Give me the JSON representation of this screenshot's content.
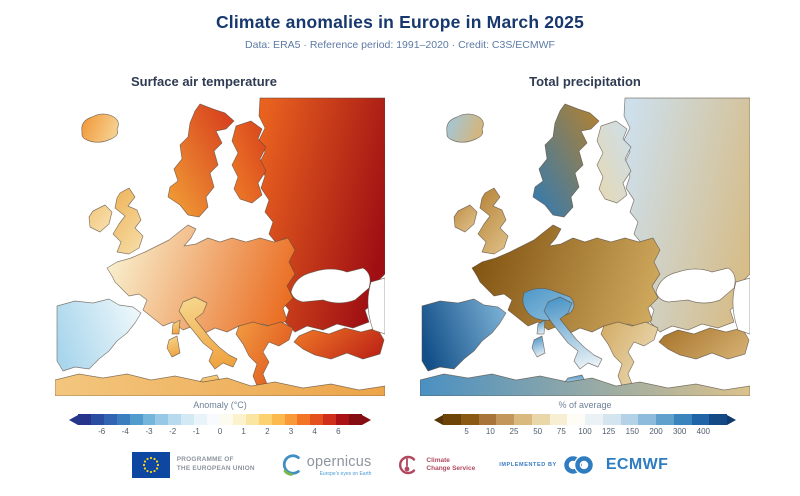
{
  "header": {
    "title": "Climate anomalies in Europe in March 2025",
    "subtitle": "Data: ERA5 · Reference period: 1991–2020 · Credit: C3S/ECMWF"
  },
  "panels": {
    "temperature": {
      "title": "Surface air temperature",
      "colorbar": {
        "label": "Anomaly (°C)",
        "ticks": [
          "-6",
          "-4",
          "-3",
          "-2",
          "-1",
          "0",
          "1",
          "2",
          "3",
          "4",
          "6"
        ],
        "segments": [
          "#27348b",
          "#2b4da1",
          "#3164b3",
          "#3b7ec0",
          "#529ccd",
          "#74b5db",
          "#97c9e6",
          "#b7daee",
          "#d3e9f4",
          "#e9f4fa",
          "#f8fbfd",
          "#fdfaee",
          "#fcf2cd",
          "#fbe5a2",
          "#fbd26f",
          "#fbb94e",
          "#f99a38",
          "#f37426",
          "#e5501f",
          "#cf2f1c",
          "#ab1216",
          "#850d11"
        ],
        "arrow_left": "#27348b",
        "arrow_right": "#850d11"
      },
      "map_fills": {
        "russia": {
          "from": "#e8611f",
          "to": "#9e0e13"
        },
        "central": {
          "from": "#f8efcd",
          "to": "#ea6c20"
        },
        "scandinavia": {
          "from": "#f2a238",
          "to": "#d5381b"
        },
        "finland": {
          "from": "#ee7d28",
          "to": "#d8431c"
        },
        "iceland": {
          "from": "#f09433",
          "to": "#f6cf8d"
        },
        "uk": {
          "from": "#eeb55e",
          "to": "#f6dca4"
        },
        "ireland": {
          "from": "#f3c67d",
          "to": "#f8e3b2"
        },
        "iberia": {
          "from": "#a9d6ec",
          "to": "#edf7fb"
        },
        "italy": {
          "from": "#f6d58a",
          "to": "#efa23f"
        },
        "balkans": {
          "from": "#f29c42",
          "to": "#e0571d"
        },
        "turkey": {
          "from": "#ee7526",
          "to": "#bf2817"
        },
        "africa": {
          "from": "#f3c67e",
          "to": "#eca449"
        }
      }
    },
    "precipitation": {
      "title": "Total precipitation",
      "colorbar": {
        "label": "% of average",
        "ticks": [
          "5",
          "10",
          "25",
          "50",
          "75",
          "100",
          "125",
          "150",
          "200",
          "300",
          "400"
        ],
        "segments": [
          "#6d4408",
          "#8a5a14",
          "#a8743a",
          "#c3975c",
          "#d9b97e",
          "#ead7a9",
          "#f7eed4",
          "#fdfcf5",
          "#eaf2f6",
          "#d4e5f0",
          "#b4d2e7",
          "#8cbbdb",
          "#5fa0cd",
          "#3984bd",
          "#1f64a7",
          "#134a86"
        ],
        "arrow_left": "#57350a",
        "arrow_right": "#0e3a6d"
      },
      "map_fills": {
        "russia": {
          "from": "#cddfeb",
          "to": "#d6bd8a"
        },
        "central": {
          "from": "#825412",
          "to": "#cfa95e"
        },
        "alps": {
          "from": "#4f97c8",
          "to": "#8fc0dd"
        },
        "scandinavia": {
          "from": "#2f7ab5",
          "to": "#b5812e"
        },
        "finland": {
          "from": "#e6d8b2",
          "to": "#ccdfeb"
        },
        "iceland": {
          "from": "#9ec9e2",
          "to": "#d3b57e"
        },
        "uk": {
          "from": "#b8863d",
          "to": "#dcbd82"
        },
        "ireland": {
          "from": "#c09048",
          "to": "#e0c28e"
        },
        "iberia": {
          "from": "#134f88",
          "to": "#79afd4"
        },
        "italy": {
          "from": "#4f97c8",
          "to": "#e8f1f6"
        },
        "balkans": {
          "from": "#d3ab64",
          "to": "#ead9b2"
        },
        "turkey": {
          "from": "#a8762c",
          "to": "#d2ac6e"
        },
        "africa": {
          "from": "#4a90c2",
          "to": "#dbc28c"
        }
      }
    }
  },
  "footer": {
    "eu_program": {
      "line1": "PROGRAMME OF",
      "line2": "THE EUROPEAN UNION"
    },
    "copernicus": {
      "wordmark": "opernicus",
      "tagline": "Europe's eyes on Earth"
    },
    "c3s": {
      "line1": "Climate",
      "line2": "Change Service"
    },
    "implemented_by": "IMPLEMENTED BY",
    "ecmwf": "ECMWF"
  },
  "brand_colors": {
    "title_navy": "#17386e",
    "subtitle_blue": "#5d7aa5",
    "eu_flag_blue": "#0e47a1",
    "eu_star_yellow": "#ffd617",
    "copernicus_gray": "#8e959e",
    "c3s_red": "#b2485f",
    "ecmwf_blue": "#2f7dc0"
  }
}
